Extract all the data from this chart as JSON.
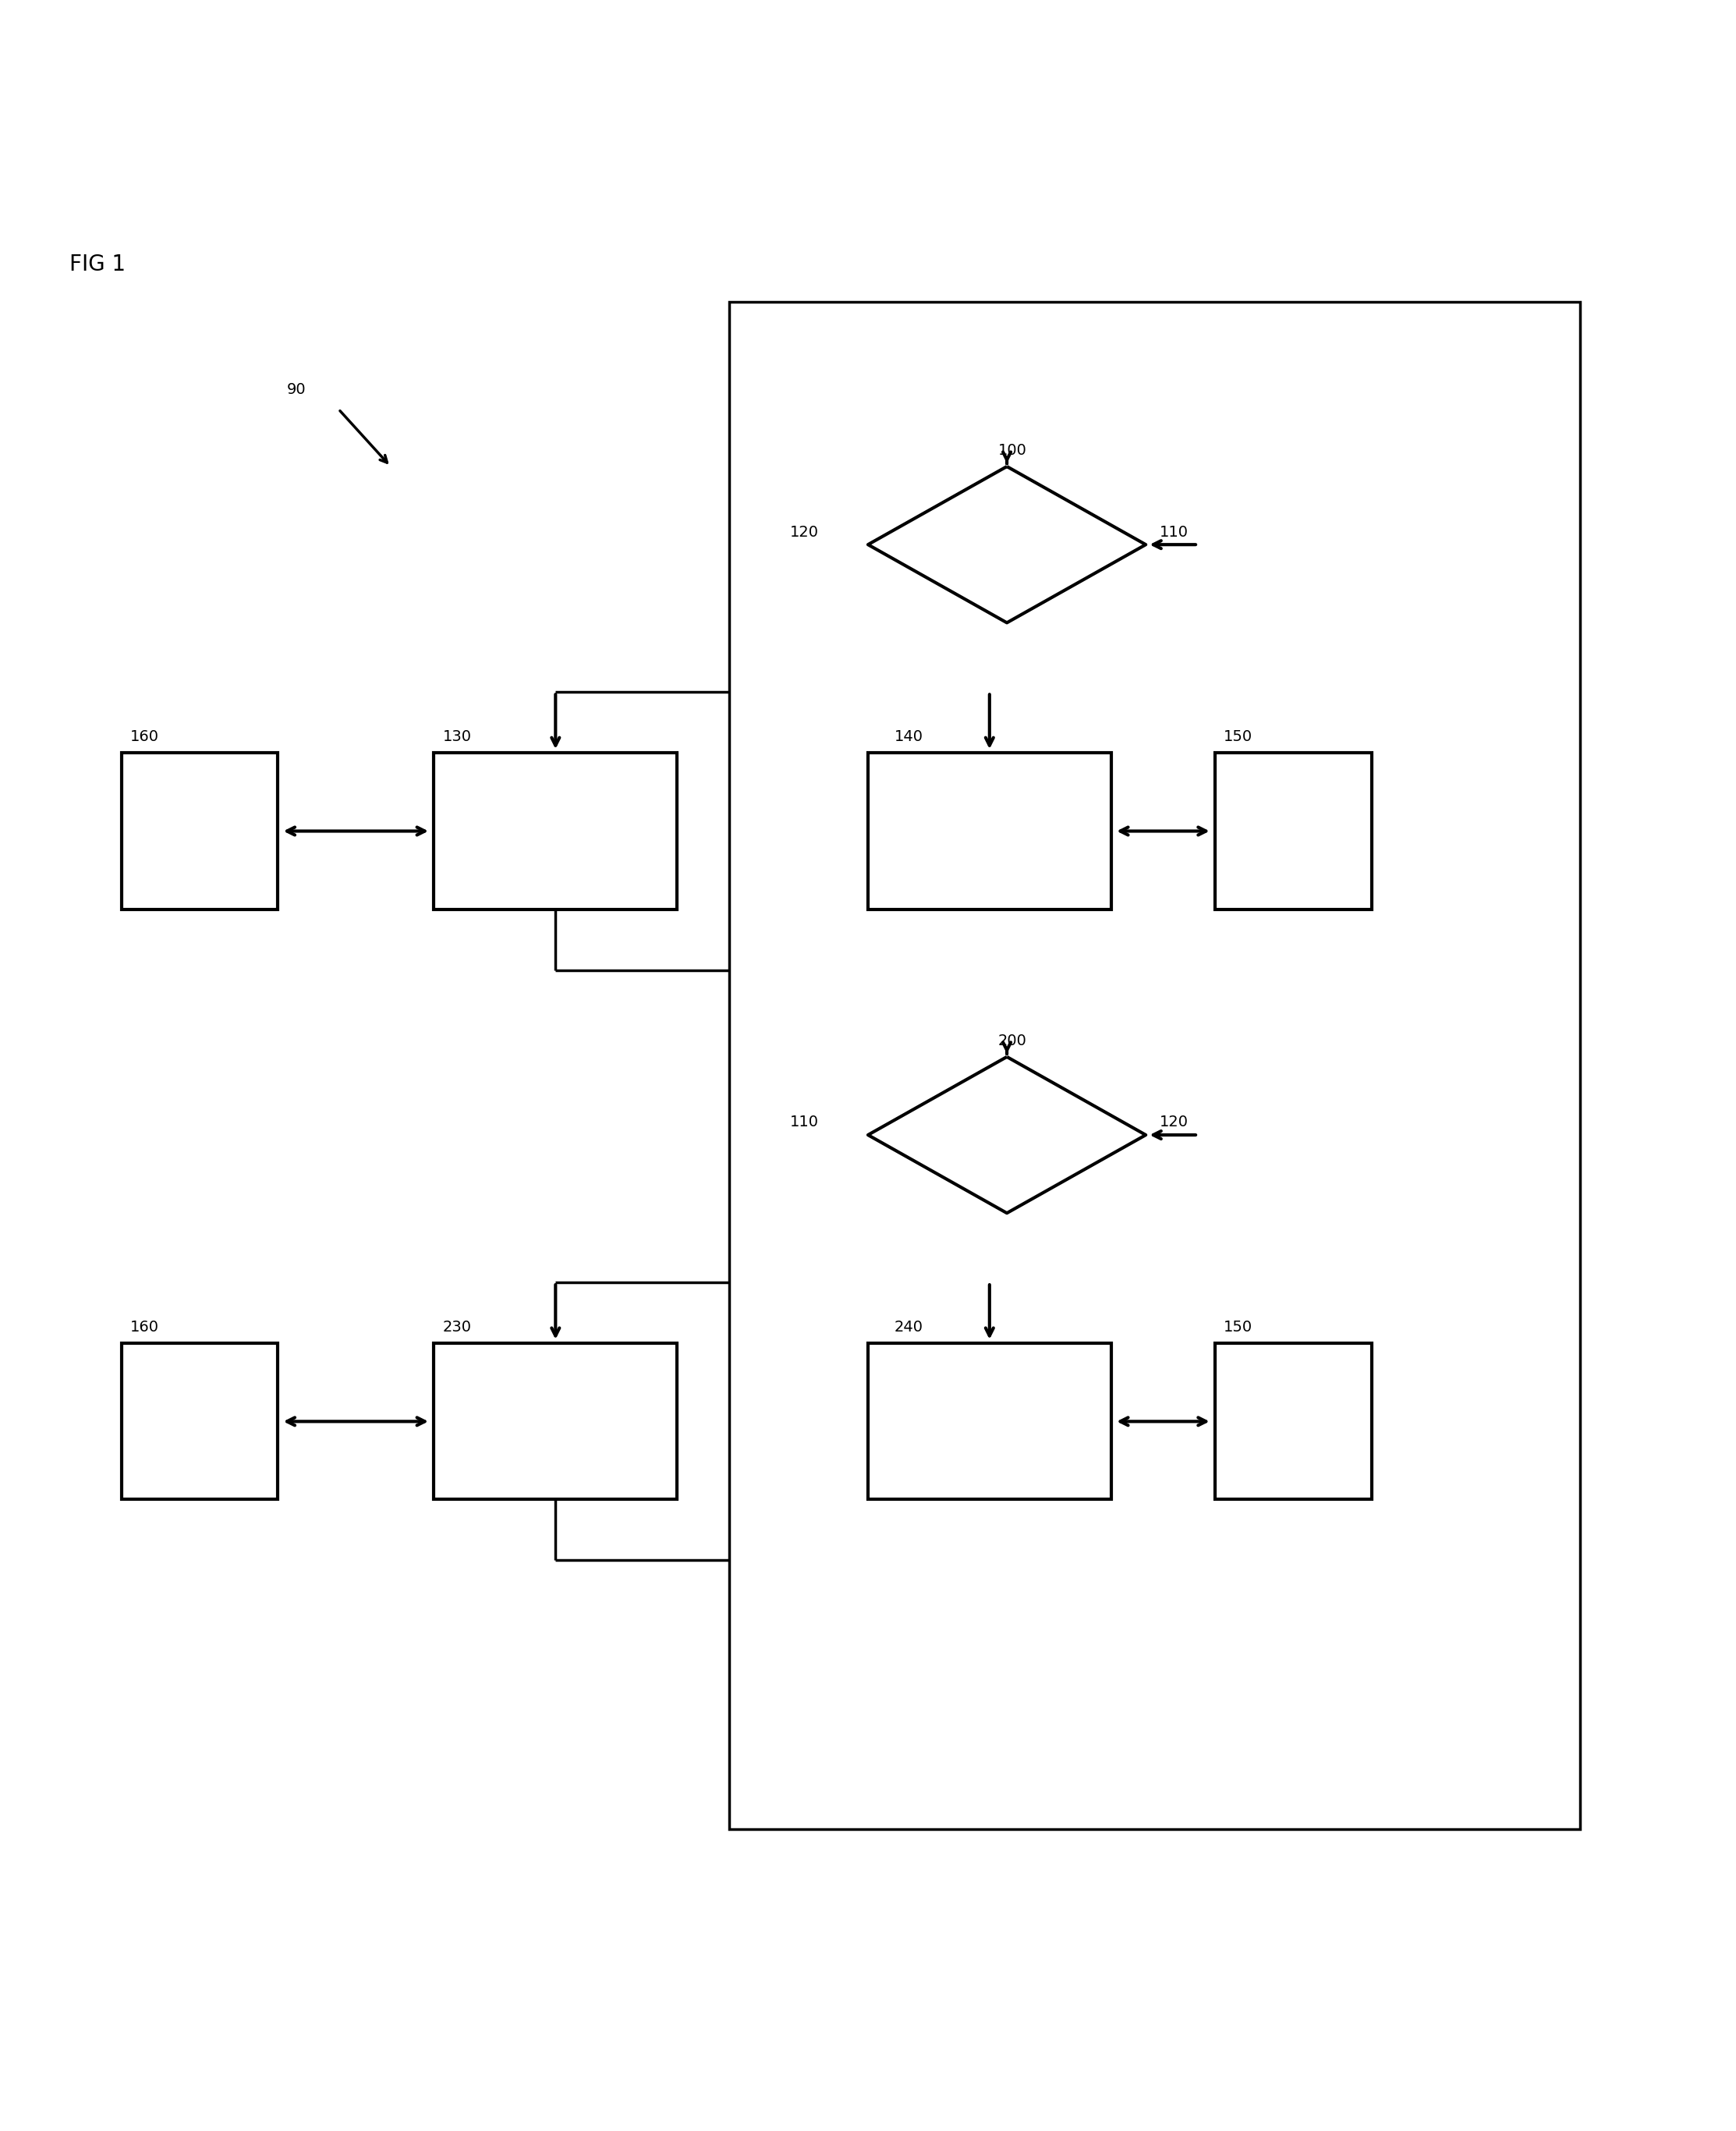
{
  "fig_label": "FIG 1",
  "background_color": "#ffffff",
  "line_color": "#000000",
  "label_90": "90",
  "label_100": "100",
  "label_110_d1": "110",
  "label_120_d1": "120",
  "label_130": "130",
  "label_140": "140",
  "label_150_r1": "150",
  "label_160_r1": "160",
  "label_200": "200",
  "label_110_d2": "110",
  "label_120_d2": "120",
  "label_230": "230",
  "label_240": "240",
  "label_150_r2": "150",
  "label_160_r2": "160"
}
